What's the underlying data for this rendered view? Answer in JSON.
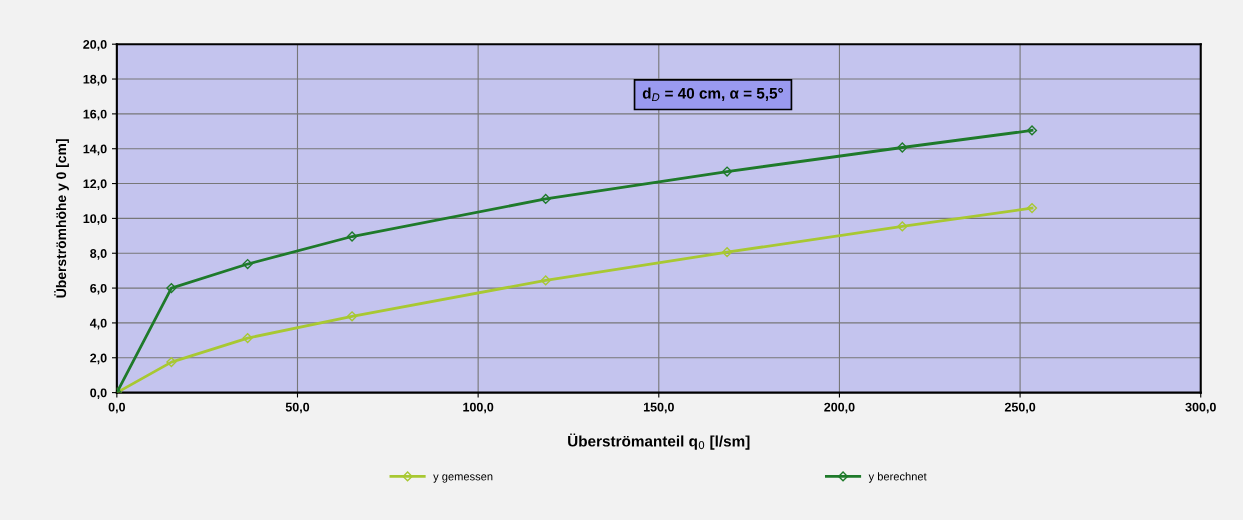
{
  "chart_data": {
    "type": "line",
    "xlabel": "Überströmanteil q$_{0}$ [l/sm]",
    "ylabel": "Überströmhöhe y 0 [cm]",
    "annotations": [
      "d$_{D}$ = 40 cm, α = 5,5°"
    ],
    "series": [
      {
        "name": "y gemessen",
        "color": "#a8c832",
        "x": [
          0,
          15.1,
          36.2,
          65.1,
          118.7,
          168.9,
          217.4,
          253.3
        ],
        "values": [
          0,
          1.75,
          3.13,
          4.38,
          6.44,
          8.06,
          9.54,
          10.59
        ]
      },
      {
        "name": "y berechnet",
        "color": "#1e7a2a",
        "x": [
          0,
          15.1,
          36.2,
          65.1,
          118.7,
          168.9,
          217.4,
          253.3
        ],
        "values": [
          0,
          6.0,
          7.38,
          8.96,
          11.12,
          12.69,
          14.07,
          15.05
        ]
      }
    ],
    "xlim": [
      0,
      300
    ],
    "ylim": [
      0,
      20
    ],
    "xticks": [
      {
        "value": 0,
        "label": "0,0"
      },
      {
        "value": 50,
        "label": "50,0"
      },
      {
        "value": 100,
        "label": "100,0"
      },
      {
        "value": 150,
        "label": "150,0"
      },
      {
        "value": 200,
        "label": "200,0"
      },
      {
        "value": 250,
        "label": "250,0"
      },
      {
        "value": 300,
        "label": "300,0"
      }
    ],
    "yticks": [
      {
        "value": 0,
        "label": "0,0"
      },
      {
        "value": 2,
        "label": "2,0"
      },
      {
        "value": 4,
        "label": "4,0"
      },
      {
        "value": 6,
        "label": "6,0"
      },
      {
        "value": 8,
        "label": "8,0"
      },
      {
        "value": 10,
        "label": "10,0"
      },
      {
        "value": 12,
        "label": "12,0"
      },
      {
        "value": 14,
        "label": "14,0"
      },
      {
        "value": 16,
        "label": "16,0"
      },
      {
        "value": 18,
        "label": "18,0"
      },
      {
        "value": 20,
        "label": "20,0"
      }
    ],
    "grid": true,
    "legend": "bottom",
    "marker": "diamond",
    "line_style": "solid"
  }
}
